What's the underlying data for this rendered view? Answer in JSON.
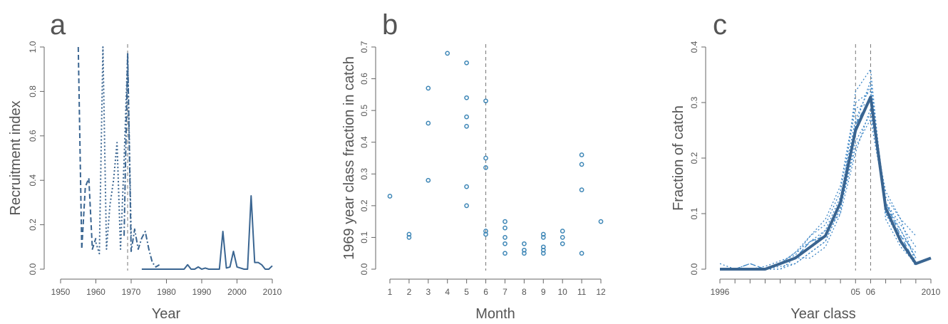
{
  "colors": {
    "series": "#3a6591",
    "points": "#3d86b6",
    "thin": "#3d86c6",
    "axis": "#666666",
    "text": "#555555",
    "ref": "#777777"
  },
  "chart_data": [
    {
      "type": "line",
      "panel_label": "a",
      "title": "",
      "xlabel": "Year",
      "ylabel": "Recruitment index",
      "xlim": [
        1950,
        2010
      ],
      "ylim": [
        0,
        1
      ],
      "xticks": [
        "1950",
        "1960",
        "1970",
        "1980",
        "1990",
        "2000",
        "2010"
      ],
      "yticks": [
        "0.0",
        "0.2",
        "0.4",
        "0.6",
        "0.8",
        "1.0"
      ],
      "ref_lines_x": [
        1969
      ],
      "series": [
        {
          "style": "dashed",
          "x": [
            1955,
            1956,
            1957,
            1958,
            1959,
            1960
          ],
          "y": [
            1.0,
            0.09,
            0.37,
            0.41,
            0.09,
            0.14
          ]
        },
        {
          "style": "dotted",
          "x": [
            1960,
            1961,
            1962,
            1963,
            1964,
            1965,
            1966,
            1967,
            1968,
            1969,
            1970
          ],
          "y": [
            0.12,
            0.07,
            1.0,
            0.09,
            0.29,
            0.4,
            0.57,
            0.09,
            0.49,
            0.97,
            0.15
          ]
        },
        {
          "style": "dashdot",
          "x": [
            1968,
            1969,
            1970,
            1971,
            1972,
            1973,
            1974,
            1975,
            1976,
            1977,
            1978
          ],
          "y": [
            0.15,
            0.97,
            0.08,
            0.18,
            0.09,
            0.14,
            0.17,
            0.09,
            0.03,
            0.01,
            0.02
          ]
        },
        {
          "style": "solid",
          "x": [
            1973,
            1974,
            1975,
            1976,
            1977,
            1978,
            1979,
            1980,
            1981,
            1982,
            1983,
            1984,
            1985,
            1986,
            1987,
            1988,
            1989,
            1990,
            1991,
            1992,
            1993,
            1994,
            1995,
            1996,
            1997,
            1998,
            1999,
            2000,
            2001,
            2002,
            2003,
            2004,
            2005,
            2006,
            2007,
            2008,
            2009,
            2010
          ],
          "y": [
            0,
            0,
            0,
            0,
            0,
            0,
            0,
            0,
            0,
            0,
            0,
            0,
            0,
            0.02,
            0,
            0,
            0.01,
            0,
            0.005,
            0,
            0,
            0,
            0,
            0.17,
            0.005,
            0.01,
            0.08,
            0.01,
            0.005,
            0,
            0,
            0.33,
            0.03,
            0.03,
            0.02,
            0,
            0,
            0.015
          ]
        }
      ]
    },
    {
      "type": "scatter",
      "panel_label": "b",
      "title": "",
      "xlabel": "Month",
      "ylabel": "1969 year class fraction in catch",
      "xlim": [
        1,
        12
      ],
      "ylim": [
        0,
        0.7
      ],
      "xticks": [
        "1",
        "2",
        "3",
        "4",
        "5",
        "6",
        "7",
        "8",
        "9",
        "10",
        "11",
        "12"
      ],
      "yticks": [
        "0.0",
        "0.1",
        "0.2",
        "0.3",
        "0.4",
        "0.5",
        "0.6",
        "0.7"
      ],
      "ref_lines_x": [
        6
      ],
      "points": [
        {
          "x": 1,
          "y": 0.23
        },
        {
          "x": 2,
          "y": 0.11
        },
        {
          "x": 2,
          "y": 0.1
        },
        {
          "x": 3,
          "y": 0.57
        },
        {
          "x": 3,
          "y": 0.46
        },
        {
          "x": 3,
          "y": 0.28
        },
        {
          "x": 4,
          "y": 0.68
        },
        {
          "x": 5,
          "y": 0.65
        },
        {
          "x": 5,
          "y": 0.54
        },
        {
          "x": 5,
          "y": 0.48
        },
        {
          "x": 5,
          "y": 0.45
        },
        {
          "x": 5,
          "y": 0.26
        },
        {
          "x": 5,
          "y": 0.2
        },
        {
          "x": 6,
          "y": 0.53
        },
        {
          "x": 6,
          "y": 0.35
        },
        {
          "x": 6,
          "y": 0.32
        },
        {
          "x": 6,
          "y": 0.12
        },
        {
          "x": 6,
          "y": 0.11
        },
        {
          "x": 7,
          "y": 0.15
        },
        {
          "x": 7,
          "y": 0.13
        },
        {
          "x": 7,
          "y": 0.1
        },
        {
          "x": 7,
          "y": 0.08
        },
        {
          "x": 7,
          "y": 0.05
        },
        {
          "x": 8,
          "y": 0.08
        },
        {
          "x": 8,
          "y": 0.06
        },
        {
          "x": 8,
          "y": 0.05
        },
        {
          "x": 9,
          "y": 0.11
        },
        {
          "x": 9,
          "y": 0.1
        },
        {
          "x": 9,
          "y": 0.07
        },
        {
          "x": 9,
          "y": 0.06
        },
        {
          "x": 9,
          "y": 0.05
        },
        {
          "x": 10,
          "y": 0.12
        },
        {
          "x": 10,
          "y": 0.1
        },
        {
          "x": 10,
          "y": 0.08
        },
        {
          "x": 11,
          "y": 0.36
        },
        {
          "x": 11,
          "y": 0.33
        },
        {
          "x": 11,
          "y": 0.25
        },
        {
          "x": 11,
          "y": 0.05
        },
        {
          "x": 12,
          "y": 0.15
        }
      ]
    },
    {
      "type": "line",
      "panel_label": "c",
      "title": "",
      "xlabel": "Year class",
      "ylabel": "Fraction of catch",
      "xlim": [
        1996,
        2010
      ],
      "ylim": [
        0,
        0.4
      ],
      "xtick_values": [
        1996,
        2005,
        2006,
        2010
      ],
      "xticks": [
        "1996",
        "05",
        "06",
        "2010"
      ],
      "minor_xticks": [
        1997,
        1998,
        1999,
        2000,
        2001,
        2002,
        2003,
        2004,
        2007,
        2008,
        2009
      ],
      "yticks": [
        "0.0",
        "0.1",
        "0.2",
        "0.3",
        "0.4"
      ],
      "ref_lines_x": [
        2005,
        2006
      ],
      "series": [
        {
          "style": "thick",
          "x": [
            1996,
            1997,
            1998,
            1999,
            2000,
            2001,
            2002,
            2003,
            2004,
            2005,
            2006,
            2007,
            2008,
            2009,
            2010
          ],
          "y": [
            0,
            0,
            0,
            0,
            0.01,
            0.02,
            0.04,
            0.06,
            0.12,
            0.25,
            0.31,
            0.11,
            0.05,
            0.01,
            0.02
          ]
        },
        {
          "style": "dotted",
          "x": [
            1996,
            1997,
            1998,
            1999,
            2000,
            2001,
            2002,
            2003,
            2004,
            2005,
            2006,
            2007,
            2008,
            2009
          ],
          "y": [
            0.01,
            0,
            0,
            0,
            0.01,
            0.02,
            0.05,
            0.07,
            0.13,
            0.27,
            0.33,
            0.12,
            0.07,
            0.02
          ]
        },
        {
          "style": "dotted",
          "x": [
            1996,
            1997,
            1998,
            1999,
            2000,
            2001,
            2002,
            2003,
            2004,
            2005,
            2006,
            2007,
            2008,
            2009
          ],
          "y": [
            0,
            0,
            0.01,
            0,
            0.01,
            0.03,
            0.06,
            0.08,
            0.14,
            0.29,
            0.3,
            0.1,
            0.06,
            0.03
          ]
        },
        {
          "style": "dotted",
          "x": [
            1996,
            1997,
            1998,
            1999,
            2000,
            2001,
            2002,
            2003,
            2004,
            2005,
            2006,
            2007,
            2008,
            2009
          ],
          "y": [
            0,
            0,
            0,
            0,
            0,
            0.01,
            0.03,
            0.05,
            0.11,
            0.23,
            0.28,
            0.14,
            0.09,
            0.06
          ]
        },
        {
          "style": "dotted",
          "x": [
            1996,
            1997,
            1998,
            1999,
            2000,
            2001,
            2002,
            2003,
            2004,
            2005,
            2006,
            2007,
            2008,
            2009
          ],
          "y": [
            0,
            0,
            0,
            0,
            0.01,
            0.02,
            0.04,
            0.07,
            0.1,
            0.32,
            0.36,
            0.09,
            0.04,
            0.01
          ]
        },
        {
          "style": "dotted",
          "x": [
            1996,
            1997,
            1998,
            1999,
            2000,
            2001,
            2002,
            2003,
            2004,
            2005,
            2006,
            2007,
            2008,
            2009
          ],
          "y": [
            0,
            0,
            0,
            0,
            0.01,
            0.03,
            0.05,
            0.06,
            0.12,
            0.26,
            0.34,
            0.11,
            0.07,
            0.02
          ]
        },
        {
          "style": "dotted",
          "x": [
            1996,
            1997,
            1998,
            1999,
            2000,
            2001,
            2002,
            2003,
            2004,
            2005,
            2006,
            2007,
            2008,
            2009
          ],
          "y": [
            0,
            0,
            0,
            0,
            0,
            0.02,
            0.02,
            0.04,
            0.1,
            0.21,
            0.29,
            0.13,
            0.09,
            0.01
          ]
        },
        {
          "style": "dotted",
          "x": [
            1996,
            1997,
            1998,
            1999,
            2000,
            2001,
            2002,
            2003,
            2004,
            2005,
            2006,
            2007,
            2008,
            2009
          ],
          "y": [
            0,
            0,
            0,
            0.005,
            0.015,
            0.025,
            0.06,
            0.09,
            0.15,
            0.3,
            0.32,
            0.1,
            0.05,
            0.005
          ]
        },
        {
          "style": "dotted",
          "x": [
            1996,
            1997,
            1998,
            1999,
            2000,
            2001,
            2002,
            2003,
            2004,
            2005,
            2006,
            2007,
            2008,
            2009
          ],
          "y": [
            0,
            0,
            0,
            0,
            0.005,
            0.01,
            0.03,
            0.05,
            0.11,
            0.22,
            0.27,
            0.12,
            0.08,
            0.04
          ]
        },
        {
          "style": "dashed",
          "x": [
            1996,
            1997,
            1998,
            1999,
            2000,
            2001,
            2002,
            2003,
            2004,
            2005,
            2006,
            2007,
            2008,
            2009
          ],
          "y": [
            0,
            0,
            0.01,
            0,
            0.01,
            0.02,
            0.05,
            0.06,
            0.12,
            0.26,
            0.31,
            0.12,
            0.06,
            0.01
          ]
        }
      ]
    }
  ]
}
